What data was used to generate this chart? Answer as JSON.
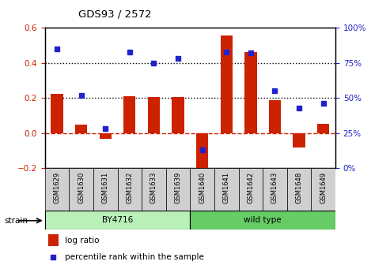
{
  "title": "GDS93 / 2572",
  "samples": [
    "GSM1629",
    "GSM1630",
    "GSM1631",
    "GSM1632",
    "GSM1633",
    "GSM1639",
    "GSM1640",
    "GSM1641",
    "GSM1642",
    "GSM1643",
    "GSM1648",
    "GSM1649"
  ],
  "log_ratio": [
    0.225,
    0.05,
    -0.03,
    0.21,
    0.205,
    0.205,
    -0.245,
    0.555,
    0.46,
    0.19,
    -0.08,
    0.055
  ],
  "percentile": [
    85,
    52,
    28,
    83,
    75,
    78,
    13,
    83,
    82,
    55,
    43,
    46
  ],
  "ylim_left": [
    -0.2,
    0.6
  ],
  "ylim_right": [
    0,
    100
  ],
  "left_ticks": [
    -0.2,
    0.0,
    0.2,
    0.4,
    0.6
  ],
  "right_ticks": [
    0,
    25,
    50,
    75,
    100
  ],
  "bar_color": "#cc2200",
  "dot_color": "#2222cc",
  "plot_bg": "white",
  "strain_row_bg": "#d0d0d0",
  "by4716_color": "#b8f0b8",
  "wildtype_color": "#66cc66"
}
